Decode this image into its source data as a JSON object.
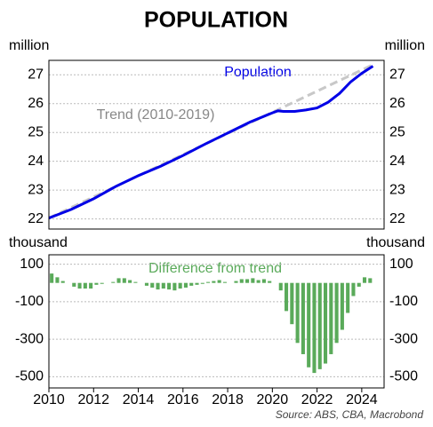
{
  "title": "POPULATION",
  "source": "Source: ABS, CBA, Macrobond",
  "chart_data": [
    {
      "type": "line",
      "ylabel": "million",
      "xlim": [
        2010,
        2025
      ],
      "ylim": [
        21.65,
        27.5
      ],
      "yticks": [
        22,
        23,
        24,
        25,
        26,
        27
      ],
      "grid": true,
      "annotations": [
        "Population",
        "Trend (2010-2019)"
      ],
      "series": [
        {
          "name": "Population",
          "color": "#0000e6",
          "dashed": false,
          "x": [
            2010,
            2011,
            2012,
            2013,
            2014,
            2015,
            2016,
            2017,
            2018,
            2019,
            2020,
            2020.25,
            2020.5,
            2021,
            2021.5,
            2022,
            2022.5,
            2023,
            2023.5,
            2024,
            2024.5
          ],
          "values": [
            22.03,
            22.33,
            22.7,
            23.13,
            23.5,
            23.83,
            24.2,
            24.6,
            24.98,
            25.36,
            25.68,
            25.75,
            25.73,
            25.73,
            25.78,
            25.85,
            26.05,
            26.35,
            26.75,
            27.05,
            27.3
          ]
        },
        {
          "name": "Trend",
          "color": "#c8c8c8",
          "dashed": true,
          "x": [
            2010,
            2024.5
          ],
          "values": [
            22.03,
            27.35
          ]
        }
      ]
    },
    {
      "type": "bar",
      "ylabel": "thousand",
      "xlim": [
        2010,
        2025
      ],
      "ylim": [
        -560,
        150
      ],
      "yticks": [
        100,
        -100,
        -300,
        -500
      ],
      "xticks": [
        2010,
        2012,
        2014,
        2016,
        2018,
        2020,
        2022,
        2024
      ],
      "grid": true,
      "color": "#5aaa5a",
      "annotation": "Difference from trend",
      "x": [
        2010,
        2010.25,
        2010.5,
        2010.75,
        2011,
        2011.25,
        2011.5,
        2011.75,
        2012,
        2012.25,
        2012.5,
        2012.75,
        2013,
        2013.25,
        2013.5,
        2013.75,
        2014,
        2014.25,
        2014.5,
        2014.75,
        2015,
        2015.25,
        2015.5,
        2015.75,
        2016,
        2016.25,
        2016.5,
        2016.75,
        2017,
        2017.25,
        2017.5,
        2017.75,
        2018,
        2018.25,
        2018.5,
        2018.75,
        2019,
        2019.25,
        2019.5,
        2019.75,
        2020,
        2020.25,
        2020.5,
        2020.75,
        2021,
        2021.25,
        2021.5,
        2021.75,
        2022,
        2022.25,
        2022.5,
        2022.75,
        2023,
        2023.25,
        2023.5,
        2023.75,
        2024,
        2024.25
      ],
      "values": [
        50,
        30,
        10,
        0,
        -20,
        -30,
        -30,
        -30,
        -10,
        -5,
        0,
        5,
        25,
        25,
        15,
        5,
        0,
        -15,
        -25,
        -35,
        -30,
        -35,
        -40,
        -30,
        -25,
        -15,
        -10,
        -5,
        5,
        10,
        15,
        5,
        0,
        10,
        20,
        20,
        25,
        15,
        20,
        10,
        0,
        -40,
        -150,
        -220,
        -320,
        -380,
        -450,
        -480,
        -460,
        -430,
        -380,
        -320,
        -250,
        -160,
        -70,
        -20,
        30,
        25
      ]
    }
  ]
}
